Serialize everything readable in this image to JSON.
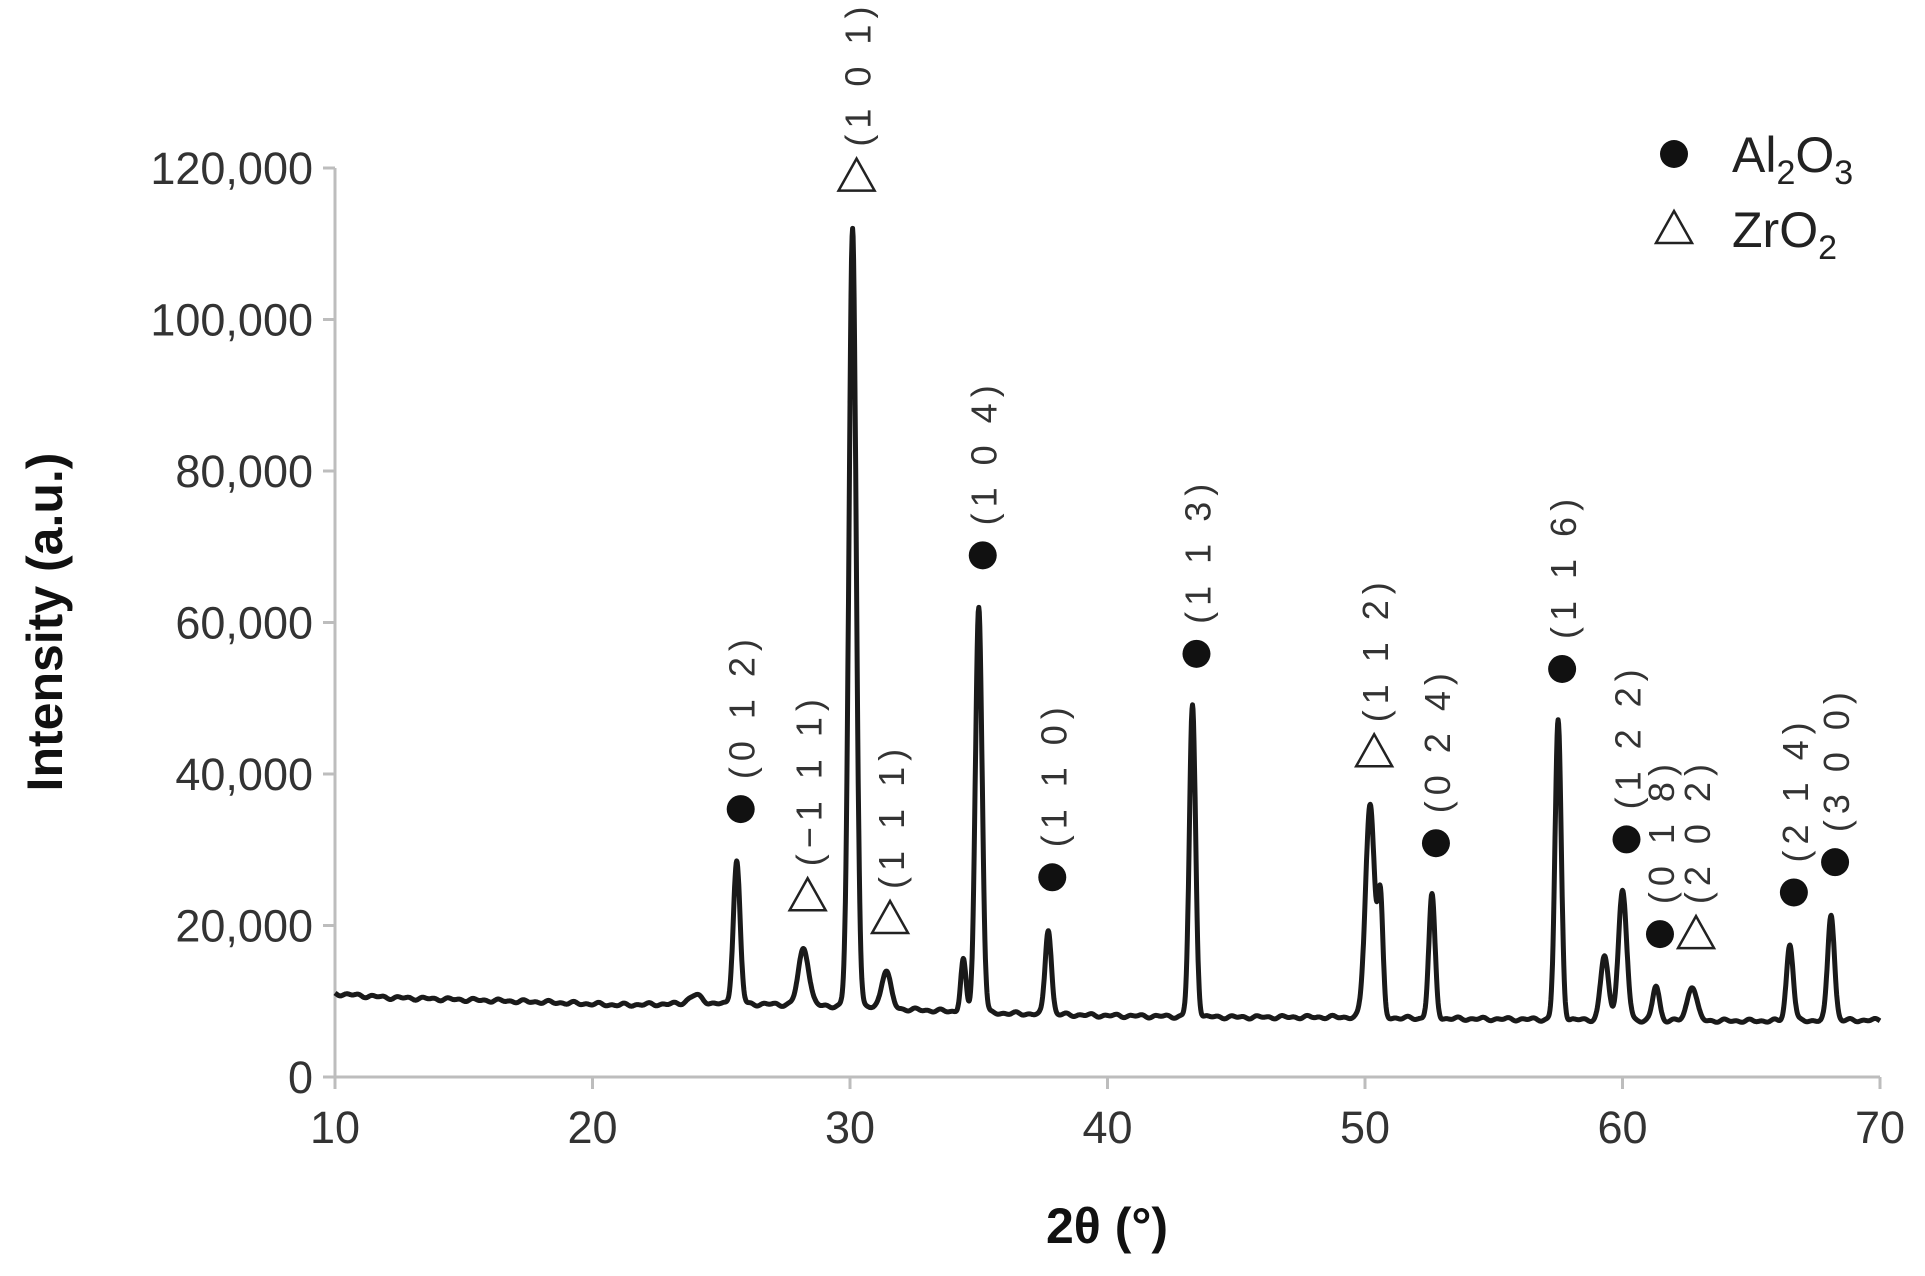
{
  "chart_data": {
    "type": "line",
    "xlabel": "2θ (°)",
    "ylabel": "Intensity (a.u.)",
    "xlim": [
      10,
      70
    ],
    "ylim": [
      0,
      120000
    ],
    "xticks": [
      10,
      20,
      30,
      40,
      50,
      60,
      70
    ],
    "yticks": [
      0,
      20000,
      40000,
      60000,
      80000,
      100000,
      120000
    ],
    "ytick_labels": [
      "0",
      "20,000",
      "40,000",
      "60,000",
      "80,000",
      "100,000",
      "120,000"
    ],
    "grid": false,
    "legend_position": "top-right",
    "legend": [
      {
        "marker": "filled-circle",
        "base": "Al",
        "sub1": "2",
        "mid": "O",
        "sub2": "3"
      },
      {
        "marker": "open-triangle",
        "base": "ZrO",
        "sub1": "2",
        "mid": "",
        "sub2": ""
      }
    ],
    "baseline": [
      [
        10,
        11000
      ],
      [
        12,
        10500
      ],
      [
        15,
        10200
      ],
      [
        18,
        9900
      ],
      [
        21,
        9500
      ],
      [
        24,
        9700
      ],
      [
        27,
        9600
      ],
      [
        30,
        9300
      ],
      [
        33,
        8800
      ],
      [
        36,
        8400
      ],
      [
        40,
        8100
      ],
      [
        45,
        7900
      ],
      [
        49,
        7900
      ],
      [
        53,
        7700
      ],
      [
        57,
        7600
      ],
      [
        60,
        7500
      ],
      [
        65,
        7400
      ],
      [
        70,
        7500
      ]
    ],
    "peaks": [
      {
        "x": 25.6,
        "y": 28500,
        "w": 0.13,
        "phase": "Al2O3",
        "hkl": "(0 1 2)"
      },
      {
        "x": 28.2,
        "y": 17000,
        "w": 0.2,
        "phase": "ZrO2",
        "hkl": "(−1 1 1)"
      },
      {
        "x": 30.1,
        "y": 112000,
        "w": 0.14,
        "phase": "ZrO2",
        "hkl": "(1 0 1)"
      },
      {
        "x": 31.4,
        "y": 14000,
        "w": 0.18,
        "phase": "ZrO2",
        "hkl": "(1 1 1)"
      },
      {
        "x": 35.0,
        "y": 62000,
        "w": 0.13,
        "phase": "Al2O3",
        "hkl": "(1 0 4)"
      },
      {
        "x": 37.7,
        "y": 19500,
        "w": 0.12,
        "phase": "Al2O3",
        "hkl": "(1 1 0)"
      },
      {
        "x": 43.3,
        "y": 49000,
        "w": 0.12,
        "phase": "Al2O3",
        "hkl": "(1 1 3)"
      },
      {
        "x": 50.2,
        "y": 36000,
        "w": 0.18,
        "phase": "ZrO2",
        "hkl": "(1 1 2)"
      },
      {
        "x": 52.6,
        "y": 24000,
        "w": 0.12,
        "phase": "Al2O3",
        "hkl": "(0 2 4)"
      },
      {
        "x": 57.5,
        "y": 47000,
        "w": 0.12,
        "phase": "Al2O3",
        "hkl": "(1 1 6)"
      },
      {
        "x": 60.0,
        "y": 24500,
        "w": 0.16,
        "phase": "Al2O3",
        "hkl": "(1 2 2)"
      },
      {
        "x": 61.3,
        "y": 12000,
        "w": 0.13,
        "phase": "Al2O3",
        "hkl": "(0 1 8)"
      },
      {
        "x": 62.7,
        "y": 12000,
        "w": 0.18,
        "phase": "ZrO2",
        "hkl": "(2 0 2)"
      },
      {
        "x": 66.5,
        "y": 17500,
        "w": 0.13,
        "phase": "Al2O3",
        "hkl": "(2 1 4)"
      },
      {
        "x": 68.1,
        "y": 21500,
        "w": 0.13,
        "phase": "Al2O3",
        "hkl": "(3 0 0)"
      }
    ],
    "shoulders": [
      {
        "x": 24.0,
        "y": 10800,
        "w": 0.25
      },
      {
        "x": 34.4,
        "y": 15500,
        "w": 0.1
      },
      {
        "x": 50.6,
        "y": 22500,
        "w": 0.1
      },
      {
        "x": 59.3,
        "y": 16000,
        "w": 0.15
      }
    ]
  }
}
